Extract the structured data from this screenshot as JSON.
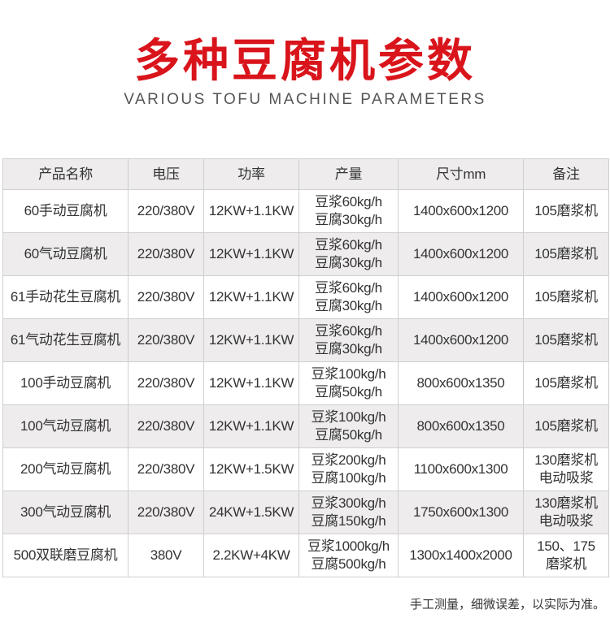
{
  "title": "多种豆腐机参数",
  "subtitle": "VARIOUS TOFU MACHINE PARAMETERS",
  "table": {
    "headers": [
      "产品名称",
      "电压",
      "功率",
      "产量",
      "尺寸mm",
      "备注"
    ],
    "rows": [
      [
        "60手动豆腐机",
        "220/380V",
        "12KW+1.1KW",
        "豆浆60kg/h",
        "豆腐30kg/h",
        "1400x600x1200",
        "105磨浆机",
        ""
      ],
      [
        "60气动豆腐机",
        "220/380V",
        "12KW+1.1KW",
        "豆浆60kg/h",
        "豆腐30kg/h",
        "1400x600x1200",
        "105磨浆机",
        ""
      ],
      [
        "61手动花生豆腐机",
        "220/380V",
        "12KW+1.1KW",
        "豆浆60kg/h",
        "豆腐30kg/h",
        "1400x600x1200",
        "105磨浆机",
        ""
      ],
      [
        "61气动花生豆腐机",
        "220/380V",
        "12KW+1.1KW",
        "豆浆60kg/h",
        "豆腐30kg/h",
        "1400x600x1200",
        "105磨浆机",
        ""
      ],
      [
        "100手动豆腐机",
        "220/380V",
        "12KW+1.1KW",
        "豆浆100kg/h",
        "豆腐50kg/h",
        "800x600x1350",
        "105磨浆机",
        ""
      ],
      [
        "100气动豆腐机",
        "220/380V",
        "12KW+1.1KW",
        "豆浆100kg/h",
        "豆腐50kg/h",
        "800x600x1350",
        "105磨浆机",
        ""
      ],
      [
        "200气动豆腐机",
        "220/380V",
        "12KW+1.5KW",
        "豆浆200kg/h",
        "豆腐100kg/h",
        "1100x600x1300",
        "130磨浆机",
        "电动吸浆"
      ],
      [
        "300气动豆腐机",
        "220/380V",
        "24KW+1.5KW",
        "豆浆300kg/h",
        "豆腐150kg/h",
        "1750x600x1300",
        "130磨浆机",
        "电动吸浆"
      ],
      [
        "500双联磨豆腐机",
        "380V",
        "2.2KW+4KW",
        "豆浆1000kg/h",
        "豆腐500kg/h",
        "1300x1400x2000",
        "150、175",
        "磨浆机"
      ]
    ]
  },
  "note": "手工测量，细微误差，以实际为准。",
  "colors": {
    "title": "#d9141b",
    "row_alt": "#eeeced"
  }
}
